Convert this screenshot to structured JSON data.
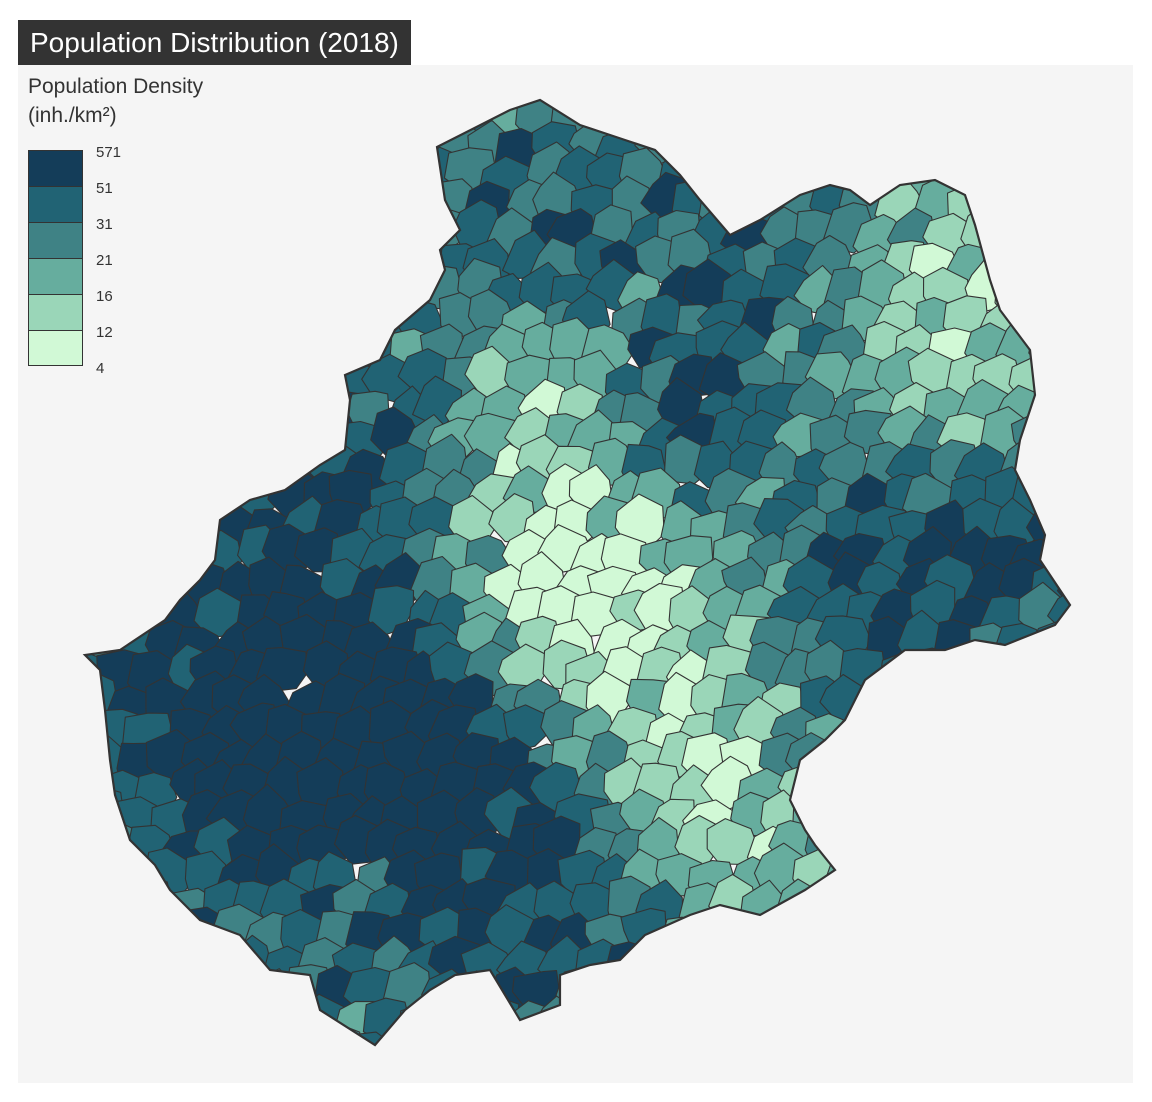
{
  "title": "Population Distribution (2018)",
  "legend": {
    "title_line1": "Population Density",
    "title_line2": "(inh./km²)",
    "breaks": [
      "571",
      "51",
      "31",
      "21",
      "16",
      "12",
      "4"
    ],
    "colors": [
      "#143d59",
      "#216374",
      "#3f8285",
      "#66ad9e",
      "#9ad6b8",
      "#d1f9d6"
    ]
  },
  "colors": {
    "panel_background": "#f5f5f5",
    "title_background": "#333333",
    "title_text": "#ffffff",
    "border": "#333333"
  }
}
